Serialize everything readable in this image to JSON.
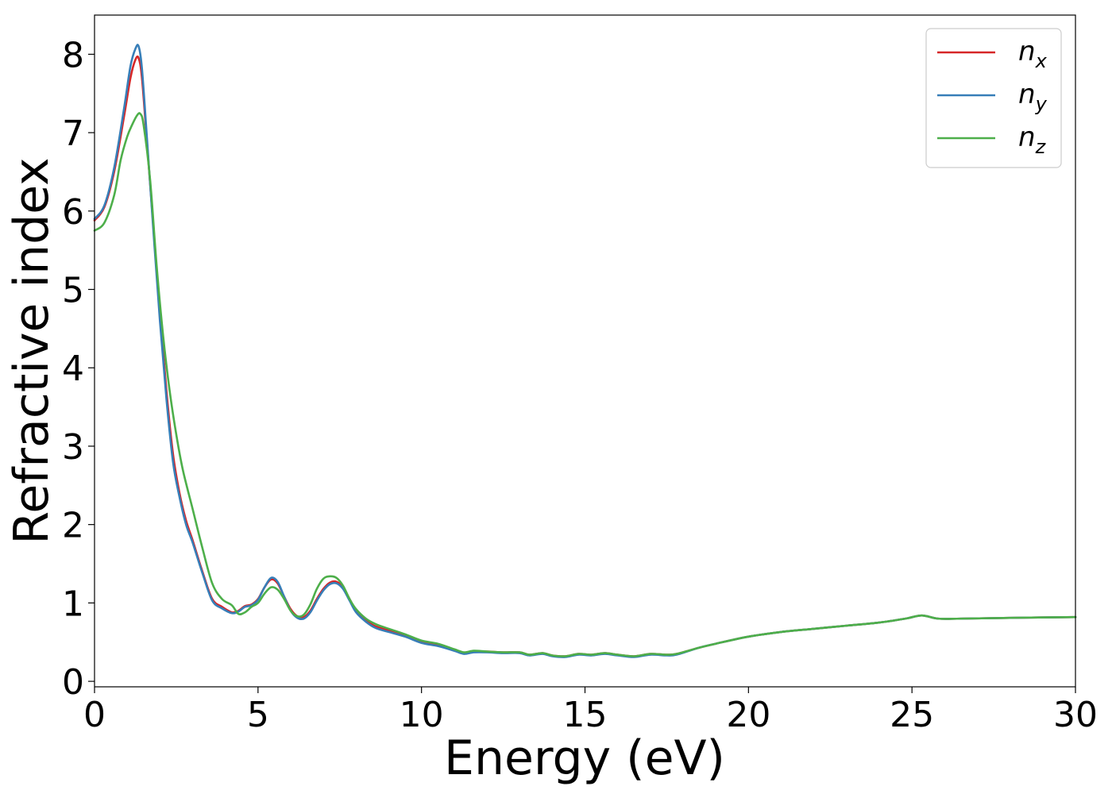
{
  "chart_data": {
    "type": "line",
    "title": "",
    "xlabel": "Energy (eV)",
    "ylabel": "Refractive index",
    "xlim": [
      0,
      30
    ],
    "ylim": [
      -0.07,
      8.5
    ],
    "xticks": [
      0,
      5,
      10,
      15,
      20,
      25,
      30
    ],
    "yticks": [
      0,
      1,
      2,
      3,
      4,
      5,
      6,
      7,
      8
    ],
    "grid": false,
    "legend_position": "top-right",
    "series": [
      {
        "name": "n_x",
        "legend_base": "n",
        "legend_sub": "x",
        "color": "#d62728",
        "x": [
          0,
          0.3,
          0.6,
          0.9,
          1.1,
          1.25,
          1.35,
          1.45,
          1.6,
          1.8,
          2.0,
          2.2,
          2.4,
          2.6,
          2.8,
          3.0,
          3.3,
          3.6,
          3.9,
          4.2,
          4.4,
          4.6,
          4.8,
          5.0,
          5.2,
          5.4,
          5.6,
          5.8,
          6.0,
          6.2,
          6.4,
          6.6,
          6.8,
          7.0,
          7.2,
          7.4,
          7.6,
          7.8,
          8.0,
          8.3,
          8.6,
          9.0,
          9.5,
          10.0,
          10.5,
          11.0,
          11.3,
          11.6,
          12.0,
          12.5,
          13.0,
          13.3,
          13.7,
          14.0,
          14.4,
          14.8,
          15.2,
          15.6,
          16.0,
          16.5,
          17.0,
          17.5,
          17.8,
          18.5,
          19.0,
          20.0,
          21.0,
          22.0,
          23.0,
          24.0,
          24.8,
          25.3,
          25.8,
          26.5,
          28.0,
          30.0
        ],
        "y": [
          5.88,
          6.05,
          6.5,
          7.2,
          7.7,
          7.93,
          7.95,
          7.7,
          6.9,
          5.8,
          4.7,
          3.7,
          2.9,
          2.4,
          2.05,
          1.8,
          1.4,
          1.05,
          0.95,
          0.88,
          0.9,
          0.96,
          0.98,
          1.05,
          1.2,
          1.3,
          1.25,
          1.08,
          0.92,
          0.83,
          0.82,
          0.9,
          1.05,
          1.18,
          1.26,
          1.27,
          1.2,
          1.05,
          0.9,
          0.78,
          0.7,
          0.65,
          0.58,
          0.5,
          0.46,
          0.4,
          0.36,
          0.38,
          0.38,
          0.37,
          0.37,
          0.34,
          0.36,
          0.33,
          0.32,
          0.35,
          0.34,
          0.36,
          0.34,
          0.32,
          0.35,
          0.34,
          0.35,
          0.43,
          0.48,
          0.57,
          0.63,
          0.67,
          0.71,
          0.75,
          0.8,
          0.84,
          0.8,
          0.8,
          0.81,
          0.82
        ]
      },
      {
        "name": "n_y",
        "legend_base": "n",
        "legend_sub": "y",
        "color": "#377eb8",
        "x": [
          0,
          0.3,
          0.6,
          0.9,
          1.1,
          1.25,
          1.35,
          1.45,
          1.6,
          1.8,
          2.0,
          2.2,
          2.4,
          2.6,
          2.8,
          3.0,
          3.3,
          3.6,
          3.9,
          4.2,
          4.4,
          4.6,
          4.8,
          5.0,
          5.2,
          5.4,
          5.6,
          5.8,
          6.0,
          6.2,
          6.4,
          6.6,
          6.8,
          7.0,
          7.2,
          7.4,
          7.6,
          7.8,
          8.0,
          8.3,
          8.6,
          9.0,
          9.5,
          10.0,
          10.5,
          11.0,
          11.3,
          11.6,
          12.0,
          12.5,
          13.0,
          13.3,
          13.7,
          14.0,
          14.4,
          14.8,
          15.2,
          15.6,
          16.0,
          16.5,
          17.0,
          17.5,
          17.8,
          18.5,
          19.0,
          20.0,
          21.0,
          22.0,
          23.0,
          24.0,
          24.8,
          25.3,
          25.8,
          26.5,
          28.0,
          30.0
        ],
        "y": [
          5.9,
          6.07,
          6.55,
          7.3,
          7.85,
          8.07,
          8.1,
          7.82,
          6.95,
          5.75,
          4.6,
          3.6,
          2.8,
          2.35,
          2.0,
          1.77,
          1.38,
          1.03,
          0.93,
          0.87,
          0.89,
          0.95,
          0.97,
          1.04,
          1.2,
          1.32,
          1.27,
          1.08,
          0.9,
          0.81,
          0.8,
          0.88,
          1.03,
          1.16,
          1.24,
          1.25,
          1.18,
          1.03,
          0.88,
          0.76,
          0.68,
          0.63,
          0.57,
          0.49,
          0.45,
          0.39,
          0.35,
          0.37,
          0.37,
          0.36,
          0.36,
          0.33,
          0.35,
          0.32,
          0.31,
          0.34,
          0.33,
          0.35,
          0.33,
          0.31,
          0.34,
          0.33,
          0.34,
          0.43,
          0.48,
          0.57,
          0.63,
          0.67,
          0.71,
          0.75,
          0.8,
          0.84,
          0.8,
          0.8,
          0.81,
          0.82
        ]
      },
      {
        "name": "n_z",
        "legend_base": "n",
        "legend_sub": "z",
        "color": "#4daf4a",
        "x": [
          0,
          0.3,
          0.6,
          0.8,
          1.0,
          1.15,
          1.3,
          1.4,
          1.5,
          1.7,
          1.9,
          2.1,
          2.3,
          2.5,
          2.7,
          3.0,
          3.3,
          3.6,
          3.9,
          4.2,
          4.4,
          4.6,
          4.8,
          5.0,
          5.2,
          5.4,
          5.6,
          5.8,
          6.0,
          6.2,
          6.4,
          6.6,
          6.8,
          7.0,
          7.2,
          7.4,
          7.6,
          7.8,
          8.0,
          8.3,
          8.6,
          9.0,
          9.5,
          10.0,
          10.5,
          11.0,
          11.3,
          11.6,
          12.0,
          12.5,
          13.0,
          13.3,
          13.7,
          14.0,
          14.4,
          14.8,
          15.2,
          15.6,
          16.0,
          16.5,
          17.0,
          17.5,
          17.8,
          18.5,
          19.0,
          20.0,
          21.0,
          22.0,
          23.0,
          24.0,
          24.8,
          25.3,
          25.8,
          26.5,
          28.0,
          30.0
        ],
        "y": [
          5.75,
          5.85,
          6.2,
          6.65,
          6.95,
          7.1,
          7.22,
          7.24,
          7.1,
          6.4,
          5.3,
          4.4,
          3.7,
          3.15,
          2.7,
          2.2,
          1.7,
          1.25,
          1.05,
          0.97,
          0.86,
          0.88,
          0.95,
          1.0,
          1.12,
          1.2,
          1.17,
          1.05,
          0.9,
          0.83,
          0.85,
          0.98,
          1.18,
          1.31,
          1.34,
          1.32,
          1.22,
          1.05,
          0.92,
          0.8,
          0.73,
          0.67,
          0.6,
          0.52,
          0.48,
          0.41,
          0.37,
          0.39,
          0.38,
          0.37,
          0.37,
          0.34,
          0.36,
          0.33,
          0.32,
          0.35,
          0.34,
          0.36,
          0.34,
          0.32,
          0.35,
          0.34,
          0.35,
          0.43,
          0.48,
          0.57,
          0.63,
          0.67,
          0.71,
          0.75,
          0.8,
          0.84,
          0.8,
          0.8,
          0.81,
          0.82
        ]
      }
    ]
  }
}
